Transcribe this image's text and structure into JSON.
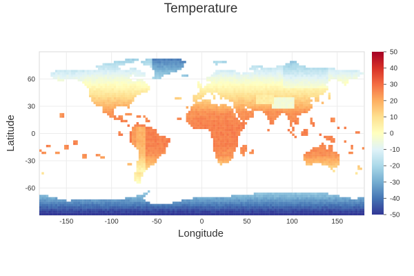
{
  "chart_data": {
    "type": "heatmap",
    "title": "Temperature",
    "xlabel": "Longitude",
    "ylabel": "Latitude",
    "xlim": [
      -180,
      180
    ],
    "ylim": [
      -90,
      90
    ],
    "x_ticks": [
      -150,
      -100,
      -50,
      0,
      50,
      100,
      150
    ],
    "y_ticks": [
      60,
      30,
      0,
      -30,
      -60
    ],
    "grid": true,
    "colorbar": {
      "range": [
        -50,
        50
      ],
      "ticks": [
        50,
        40,
        30,
        20,
        10,
        0,
        -10,
        -20,
        -30,
        -40,
        -50
      ],
      "colors": [
        "#313695",
        "#4575b4",
        "#74add1",
        "#abd9e9",
        "#e0f3f8",
        "#ffffbf",
        "#fee090",
        "#fdae61",
        "#f46d43",
        "#d73027",
        "#a50026"
      ]
    },
    "field": "Gridded global surface temperature, ocean cells blank; warm tropics about 25 to 30, cold Antarctica about -45",
    "x_tick_labels": [
      "-150",
      "-100",
      "-50",
      "0",
      "50",
      "100",
      "150"
    ],
    "y_tick_labels": [
      "60",
      "30",
      "0",
      "-30",
      "-60"
    ],
    "colorbar_tick_labels": [
      "50",
      "40",
      "30",
      "20",
      "10",
      "0",
      "-10",
      "-20",
      "-30",
      "-40",
      "-50"
    ]
  }
}
